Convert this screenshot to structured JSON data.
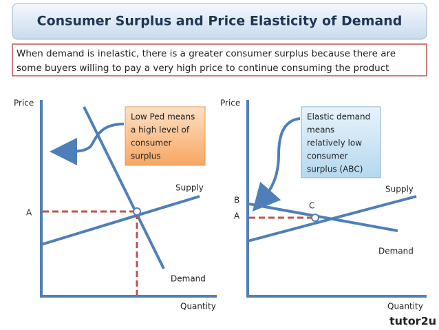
{
  "title": "Consumer Surplus and Price Elasticity of Demand",
  "intro": {
    "lines": [
      "When demand is inelastic, there is a greater consumer surplus because there are",
      "some buyers willing to pay a very high price to continue consuming the product"
    ]
  },
  "left": {
    "y_axis": "Price",
    "x_axis": "Quantity",
    "supply": "Supply",
    "demand": "Demand",
    "price_label": "A",
    "callout": [
      "Low Ped means",
      "a high level of",
      "consumer",
      "surplus"
    ]
  },
  "right": {
    "y_axis": "Price",
    "x_axis": "Quantity",
    "supply": "Supply",
    "demand": "Demand",
    "b_label": "B",
    "price_label": "A",
    "c_label": "C",
    "callout": [
      "Elastic demand",
      "means",
      "relatively low",
      "consumer",
      "surplus (ABC)"
    ]
  },
  "logo": "tutor2u"
}
